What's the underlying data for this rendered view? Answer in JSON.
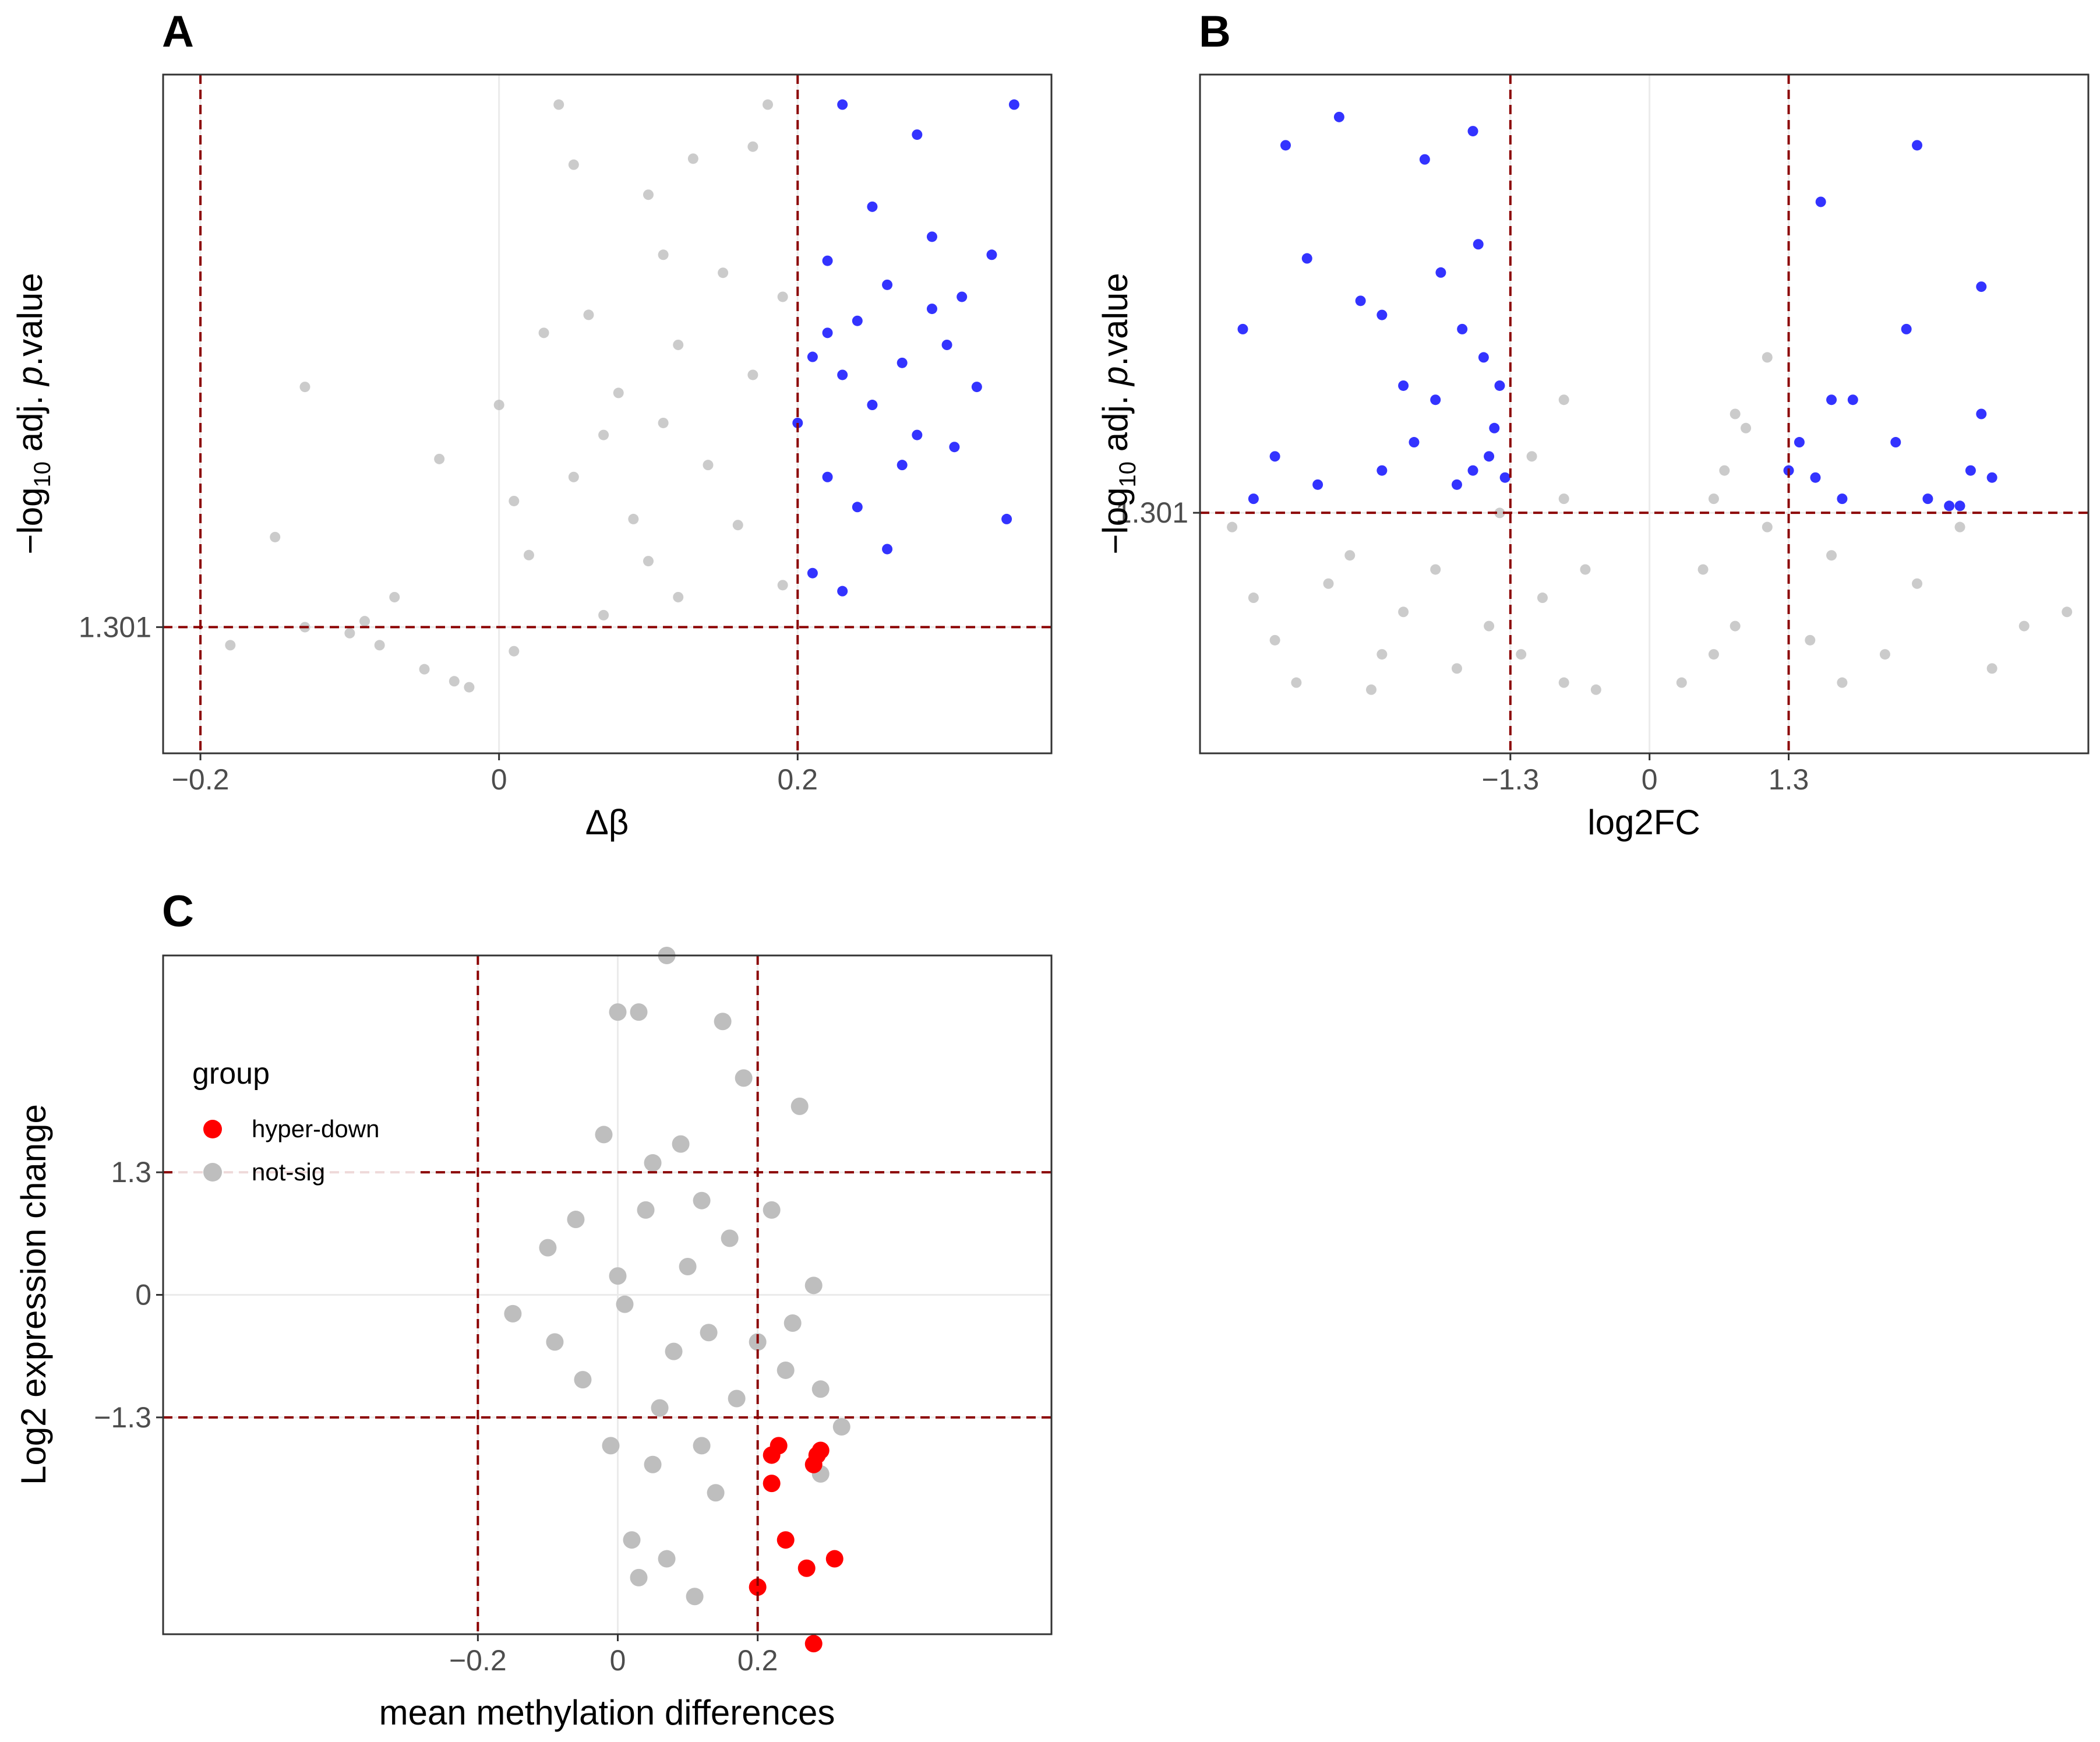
{
  "colors": {
    "not_sig": "#bebebe",
    "sig_blue": "#0000ff",
    "sig_red": "#ff0000",
    "threshold": "#8b0000",
    "grid": "#ebebeb",
    "border": "#333333"
  },
  "chart_data": [
    {
      "panel": "A",
      "type": "scatter",
      "title": "",
      "xlabel": "Δβ",
      "ylabel_prefix": "−log",
      "ylabel_sub": "10",
      "ylabel_mid": " adj. ",
      "ylabel_italic": "p",
      "ylabel_suffix": ".value",
      "xlim": [
        -0.225,
        0.37
      ],
      "ylim": [
        -0.8,
        10.5
      ],
      "x_ticks": [
        -0.2,
        0,
        0.2
      ],
      "x_tick_labels": [
        "−0.2",
        "0",
        "0.2"
      ],
      "y_ticks": [
        1.301
      ],
      "y_tick_labels": [
        "1.301"
      ],
      "vlines": [
        -0.2,
        0.2
      ],
      "hlines": [
        1.301
      ],
      "series": [
        {
          "name": "not-sig",
          "color": "#bebebe",
          "points": [
            [
              -0.18,
              1.0
            ],
            [
              -0.15,
              2.8
            ],
            [
              -0.13,
              1.3
            ],
            [
              -0.13,
              5.3
            ],
            [
              -0.1,
              1.2
            ],
            [
              -0.09,
              1.4
            ],
            [
              -0.08,
              1.0
            ],
            [
              -0.07,
              1.8
            ],
            [
              -0.05,
              0.6
            ],
            [
              -0.04,
              4.1
            ],
            [
              -0.03,
              0.4
            ],
            [
              -0.02,
              0.3
            ],
            [
              0.01,
              0.9
            ],
            [
              0.02,
              2.5
            ],
            [
              0.04,
              10.0
            ],
            [
              0.05,
              9.0
            ],
            [
              0.03,
              6.2
            ],
            [
              0.06,
              6.5
            ],
            [
              0.1,
              8.5
            ],
            [
              0.13,
              9.1
            ],
            [
              0.17,
              9.3
            ],
            [
              0.18,
              10.0
            ],
            [
              0.15,
              7.2
            ],
            [
              0.12,
              6.0
            ],
            [
              0.11,
              7.5
            ],
            [
              0.08,
              5.2
            ],
            [
              0.09,
              3.1
            ],
            [
              0.14,
              4.0
            ],
            [
              0.16,
              3.0
            ],
            [
              0.19,
              6.8
            ],
            [
              0.19,
              2.0
            ],
            [
              0.07,
              4.5
            ],
            [
              0.05,
              3.8
            ],
            [
              0.0,
              5.0
            ],
            [
              0.01,
              3.4
            ],
            [
              0.12,
              1.8
            ],
            [
              0.1,
              2.4
            ],
            [
              0.07,
              1.5
            ],
            [
              0.17,
              5.5
            ],
            [
              0.11,
              4.7
            ]
          ]
        },
        {
          "name": "sig",
          "color": "#0000ff",
          "points": [
            [
              0.23,
              10.0
            ],
            [
              0.345,
              10.0
            ],
            [
              0.28,
              9.5
            ],
            [
              0.29,
              7.8
            ],
            [
              0.25,
              8.3
            ],
            [
              0.22,
              7.4
            ],
            [
              0.26,
              7.0
            ],
            [
              0.24,
              6.4
            ],
            [
              0.27,
              5.7
            ],
            [
              0.3,
              6.0
            ],
            [
              0.32,
              5.3
            ],
            [
              0.33,
              7.5
            ],
            [
              0.21,
              5.8
            ],
            [
              0.23,
              5.5
            ],
            [
              0.25,
              5.0
            ],
            [
              0.28,
              4.5
            ],
            [
              0.305,
              4.3
            ],
            [
              0.34,
              3.1
            ],
            [
              0.22,
              3.8
            ],
            [
              0.24,
              3.3
            ],
            [
              0.26,
              2.6
            ],
            [
              0.21,
              2.2
            ],
            [
              0.23,
              1.9
            ],
            [
              0.2,
              4.7
            ],
            [
              0.27,
              4.0
            ],
            [
              0.29,
              6.6
            ],
            [
              0.31,
              6.8
            ],
            [
              0.22,
              6.2
            ]
          ]
        }
      ]
    },
    {
      "panel": "B",
      "type": "scatter",
      "title": "",
      "xlabel": "log2FC",
      "ylabel_prefix": "−log",
      "ylabel_sub": "10",
      "ylabel_mid": " adj. ",
      "ylabel_italic": "p",
      "ylabel_suffix": ".value",
      "xlim": [
        -4.2,
        4.1
      ],
      "ylim": [
        -0.4,
        4.4
      ],
      "x_ticks": [
        -1.3,
        0,
        1.3
      ],
      "x_tick_labels": [
        "−1.3",
        "0",
        "1.3"
      ],
      "y_ticks": [
        1.301
      ],
      "y_tick_labels": [
        "1.301"
      ],
      "vlines": [
        -1.3,
        1.3
      ],
      "hlines": [
        1.301
      ],
      "series": [
        {
          "name": "not-sig",
          "color": "#bebebe",
          "points": [
            [
              -3.9,
              1.2
            ],
            [
              -3.7,
              0.7
            ],
            [
              -3.5,
              0.4
            ],
            [
              -3.0,
              0.8
            ],
            [
              -2.8,
              1.0
            ],
            [
              -2.5,
              0.3
            ],
            [
              -2.3,
              0.6
            ],
            [
              -2.0,
              0.9
            ],
            [
              -1.8,
              0.2
            ],
            [
              -1.5,
              0.5
            ],
            [
              -1.2,
              0.3
            ],
            [
              -1.0,
              0.7
            ],
            [
              -0.8,
              0.1
            ],
            [
              -0.5,
              0.05
            ],
            [
              -1.4,
              1.3
            ],
            [
              -1.1,
              1.7
            ],
            [
              -0.8,
              1.4
            ],
            [
              -0.8,
              2.1
            ],
            [
              -0.6,
              0.9
            ],
            [
              -3.3,
              0.1
            ],
            [
              -2.6,
              0.05
            ],
            [
              0.3,
              0.1
            ],
            [
              0.6,
              0.3
            ],
            [
              0.5,
              0.9
            ],
            [
              0.8,
              0.5
            ],
            [
              0.7,
              1.6
            ],
            [
              0.9,
              1.9
            ],
            [
              0.6,
              1.4
            ],
            [
              1.1,
              1.2
            ],
            [
              1.5,
              0.4
            ],
            [
              1.8,
              0.1
            ],
            [
              2.2,
              0.3
            ],
            [
              2.5,
              0.8
            ],
            [
              2.9,
              1.2
            ],
            [
              3.2,
              0.2
            ],
            [
              3.5,
              0.5
            ],
            [
              3.9,
              0.6
            ],
            [
              1.1,
              2.4
            ],
            [
              0.8,
              2.0
            ],
            [
              1.7,
              1.0
            ]
          ]
        },
        {
          "name": "sig",
          "color": "#0000ff",
          "points": [
            [
              -3.8,
              2.6
            ],
            [
              -3.4,
              3.9
            ],
            [
              -3.2,
              3.1
            ],
            [
              -2.9,
              4.1
            ],
            [
              -2.7,
              2.8
            ],
            [
              -2.5,
              2.7
            ],
            [
              -2.3,
              2.2
            ],
            [
              -2.0,
              2.1
            ],
            [
              -1.95,
              3.0
            ],
            [
              -1.6,
              3.2
            ],
            [
              -2.1,
              3.8
            ],
            [
              -1.65,
              4.0
            ],
            [
              -1.75,
              2.6
            ],
            [
              -1.55,
              2.4
            ],
            [
              -1.4,
              2.2
            ],
            [
              -1.45,
              1.9
            ],
            [
              -1.65,
              1.6
            ],
            [
              -1.8,
              1.5
            ],
            [
              -2.5,
              1.6
            ],
            [
              -3.1,
              1.5
            ],
            [
              -3.5,
              1.7
            ],
            [
              -3.7,
              1.4
            ],
            [
              -2.2,
              1.8
            ],
            [
              -1.35,
              1.55
            ],
            [
              -1.5,
              1.7
            ],
            [
              1.6,
              3.5
            ],
            [
              2.5,
              3.9
            ],
            [
              3.1,
              2.9
            ],
            [
              2.4,
              2.6
            ],
            [
              1.7,
              2.1
            ],
            [
              1.4,
              1.8
            ],
            [
              2.3,
              1.8
            ],
            [
              3.1,
              2.0
            ],
            [
              1.55,
              1.55
            ],
            [
              1.8,
              1.4
            ],
            [
              2.6,
              1.4
            ],
            [
              3.0,
              1.6
            ],
            [
              3.2,
              1.55
            ],
            [
              2.8,
              1.35
            ],
            [
              2.9,
              1.35
            ],
            [
              1.3,
              1.6
            ],
            [
              1.9,
              2.1
            ]
          ]
        }
      ]
    },
    {
      "panel": "C",
      "type": "scatter",
      "title": "",
      "xlabel": "mean methylation differences",
      "ylabel": "Log2 expression change",
      "xlim": [
        -0.65,
        0.62
      ],
      "ylim": [
        -3.6,
        3.6
      ],
      "x_ticks": [
        -0.2,
        0,
        0.2
      ],
      "x_tick_labels": [
        "−0.2",
        "0",
        "0.2"
      ],
      "y_ticks": [
        1.3,
        0,
        -1.3
      ],
      "y_tick_labels": [
        "1.3",
        "0",
        "−1.3"
      ],
      "vlines": [
        -0.2,
        0.2
      ],
      "hlines": [
        1.3,
        -1.3
      ],
      "legend": {
        "title": "group",
        "position": "top-left",
        "items": [
          {
            "label": "hyper-down",
            "color": "#ff0000"
          },
          {
            "label": "not-sig",
            "color": "#bebebe"
          }
        ]
      },
      "series": [
        {
          "name": "not-sig",
          "color": "#bebebe",
          "points": [
            [
              -0.15,
              -0.2
            ],
            [
              -0.1,
              0.5
            ],
            [
              -0.06,
              0.8
            ],
            [
              -0.05,
              -0.9
            ],
            [
              -0.09,
              -0.5
            ],
            [
              0.0,
              3.0
            ],
            [
              0.07,
              3.6
            ],
            [
              0.03,
              3.0
            ],
            [
              0.15,
              2.9
            ],
            [
              0.18,
              2.3
            ],
            [
              0.26,
              2.0
            ],
            [
              -0.02,
              1.7
            ],
            [
              0.05,
              1.4
            ],
            [
              0.12,
              1.0
            ],
            [
              0.2,
              -0.5
            ],
            [
              0.24,
              -0.8
            ],
            [
              0.29,
              -1.0
            ],
            [
              0.32,
              -1.4
            ],
            [
              0.29,
              -1.9
            ],
            [
              -0.01,
              -1.6
            ],
            [
              0.02,
              -2.6
            ],
            [
              0.03,
              -3.0
            ],
            [
              0.07,
              -2.8
            ],
            [
              0.11,
              -3.2
            ],
            [
              0.05,
              -1.8
            ],
            [
              0.14,
              -2.1
            ],
            [
              0.08,
              -0.6
            ],
            [
              0.1,
              0.3
            ],
            [
              0.13,
              -0.4
            ],
            [
              0.16,
              0.6
            ],
            [
              0.01,
              -0.1
            ],
            [
              0.04,
              0.9
            ],
            [
              0.06,
              -1.2
            ],
            [
              0.12,
              -1.6
            ],
            [
              0.17,
              -1.1
            ],
            [
              0.25,
              -0.3
            ],
            [
              0.22,
              0.9
            ],
            [
              0.28,
              0.1
            ],
            [
              0.09,
              1.6
            ],
            [
              0.0,
              0.2
            ]
          ]
        },
        {
          "name": "hyper-down",
          "color": "#ff0000",
          "points": [
            [
              0.23,
              -1.6
            ],
            [
              0.22,
              -1.7
            ],
            [
              0.285,
              -1.7
            ],
            [
              0.29,
              -1.65
            ],
            [
              0.28,
              -1.8
            ],
            [
              0.22,
              -2.0
            ],
            [
              0.24,
              -2.6
            ],
            [
              0.31,
              -2.8
            ],
            [
              0.27,
              -2.9
            ],
            [
              0.2,
              -3.1
            ],
            [
              0.28,
              -3.7
            ]
          ]
        }
      ]
    }
  ]
}
